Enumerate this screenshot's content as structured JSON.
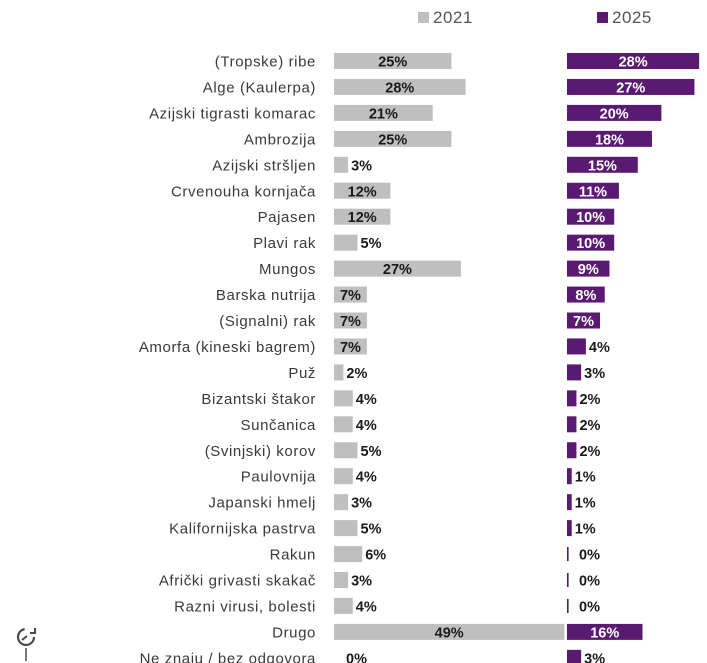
{
  "colors": {
    "series_2021": "#bfbfbf",
    "series_2025": "#5b1a72",
    "label_dark": "#1a1a1a",
    "label_light": "#ffffff"
  },
  "logo_icon": "circular-arrow-logo-icon",
  "chart_data": {
    "type": "bar",
    "orientation": "horizontal",
    "layout": "side-by-side panels",
    "legend": "top-right",
    "grid": false,
    "categories": [
      "(Tropske) ribe",
      "Alge (Kaulerpa)",
      "Azijski tigrasti komarac",
      "Ambrozija",
      "Azijski stršljen",
      "Crvenouha kornjača",
      "Pajasen",
      "Plavi rak",
      "Mungos",
      "Barska nutrija",
      "(Signalni) rak",
      "Amorfa (kineski bagrem)",
      "Puž",
      "Bizantski štakor",
      "Sunčanica",
      "(Svinjski) korov",
      "Paulovnija",
      "Japanski hmelj",
      "Kalifornijska pastrva",
      "Rakun",
      "Afrički grivasti skakač",
      "Razni virusi, bolesti",
      "Drugo",
      "Ne znaju / bez odgovora"
    ],
    "series": [
      {
        "name": "2021",
        "values": [
          25,
          28,
          21,
          25,
          3,
          12,
          12,
          5,
          27,
          7,
          7,
          7,
          2,
          4,
          4,
          5,
          4,
          3,
          5,
          6,
          3,
          4,
          49,
          0
        ]
      },
      {
        "name": "2025",
        "values": [
          28,
          27,
          20,
          18,
          15,
          11,
          10,
          10,
          9,
          8,
          7,
          4,
          3,
          2,
          2,
          2,
          1,
          1,
          1,
          0,
          0,
          0,
          16,
          3
        ]
      }
    ],
    "unit": "%"
  }
}
